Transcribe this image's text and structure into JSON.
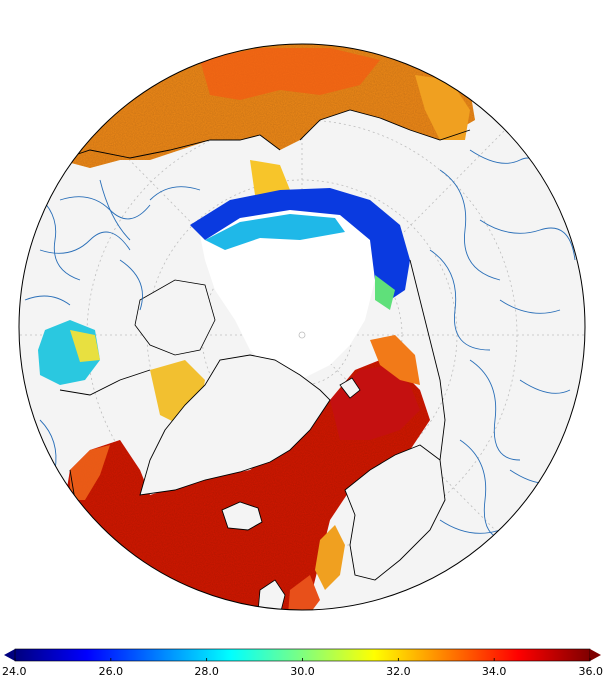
{
  "colorbar": {
    "ticks": [
      "24.0",
      "26.0",
      "28.0",
      "30.0",
      "32.0",
      "34.0",
      "36.0"
    ],
    "min": 24.0,
    "max": 36.0,
    "colormap": "jet",
    "extend": "both"
  },
  "colors": {
    "land": "#f4f4f4",
    "ice": "#ffffff",
    "river": "#2a6fb8",
    "coast": "#000000",
    "graticule": "#bdbdbd",
    "ocean_high": "#c81010",
    "ocean_mid": "#f06a10",
    "ocean_low": "#0a2ac8"
  },
  "projection": "north-polar-stereographic"
}
